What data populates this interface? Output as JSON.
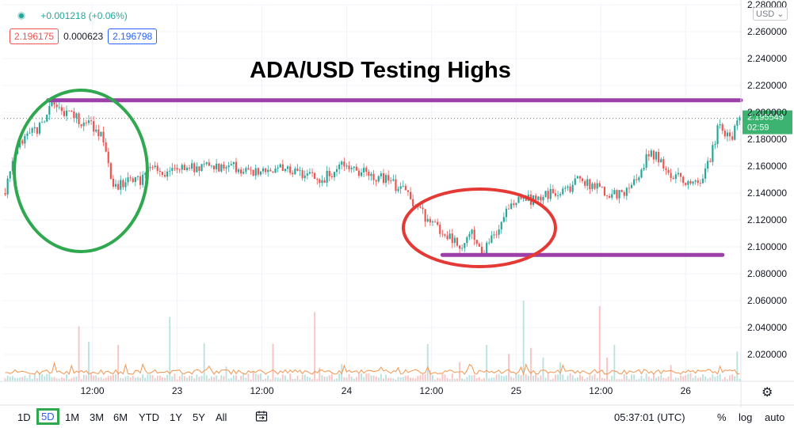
{
  "legend": {
    "change": "+0.001218 (+0.06%)",
    "bid": "2.196175",
    "spread": "0.000623",
    "ask": "2.196798"
  },
  "currency_label": "USD",
  "last_price": {
    "value": "2.195549",
    "countdown": "02:59"
  },
  "timeframes": [
    "1D",
    "5D",
    "1M",
    "3M",
    "6M",
    "YTD",
    "1Y",
    "5Y",
    "All"
  ],
  "selected_timeframe": "5D",
  "clock": "05:37:01 (UTC)",
  "scale_toggles": [
    "%",
    "log",
    "auto"
  ],
  "colors": {
    "up": "#26a69a",
    "down": "#ef5350",
    "resistance": "#9c3fa8",
    "green_ellipse": "#2fa84f",
    "red_ellipse": "#e53935",
    "price_tag": "#3cb371"
  },
  "chart_data": {
    "type": "candlestick",
    "title": "ADA/USD Testing Highs",
    "ylim": [
      2.0,
      2.28
    ],
    "y_ticks": [
      "2.020000",
      "2.040000",
      "2.060000",
      "2.080000",
      "2.100000",
      "2.120000",
      "2.140000",
      "2.160000",
      "2.180000",
      "2.200000",
      "2.220000",
      "2.240000",
      "2.260000",
      "2.280000"
    ],
    "x_ticks": [
      "12:00",
      "23",
      "12:00",
      "24",
      "12:00",
      "25",
      "12:00",
      "26"
    ],
    "price_path": [
      [
        0.0,
        2.14
      ],
      [
        0.02,
        2.175
      ],
      [
        0.05,
        2.19
      ],
      [
        0.065,
        2.205
      ],
      [
        0.08,
        2.2
      ],
      [
        0.1,
        2.195
      ],
      [
        0.12,
        2.19
      ],
      [
        0.135,
        2.18
      ],
      [
        0.145,
        2.15
      ],
      [
        0.155,
        2.145
      ],
      [
        0.17,
        2.15
      ],
      [
        0.185,
        2.148
      ],
      [
        0.2,
        2.16
      ],
      [
        0.22,
        2.155
      ],
      [
        0.25,
        2.158
      ],
      [
        0.28,
        2.16
      ],
      [
        0.31,
        2.16
      ],
      [
        0.34,
        2.155
      ],
      [
        0.37,
        2.158
      ],
      [
        0.4,
        2.155
      ],
      [
        0.43,
        2.15
      ],
      [
        0.46,
        2.16
      ],
      [
        0.49,
        2.155
      ],
      [
        0.52,
        2.15
      ],
      [
        0.545,
        2.14
      ],
      [
        0.575,
        2.12
      ],
      [
        0.6,
        2.11
      ],
      [
        0.62,
        2.1
      ],
      [
        0.635,
        2.11
      ],
      [
        0.65,
        2.095
      ],
      [
        0.665,
        2.108
      ],
      [
        0.68,
        2.125
      ],
      [
        0.7,
        2.135
      ],
      [
        0.72,
        2.135
      ],
      [
        0.74,
        2.14
      ],
      [
        0.76,
        2.14
      ],
      [
        0.78,
        2.15
      ],
      [
        0.8,
        2.145
      ],
      [
        0.82,
        2.14
      ],
      [
        0.84,
        2.138
      ],
      [
        0.86,
        2.15
      ],
      [
        0.875,
        2.17
      ],
      [
        0.89,
        2.165
      ],
      [
        0.9,
        2.155
      ],
      [
        0.92,
        2.15
      ],
      [
        0.94,
        2.145
      ],
      [
        0.955,
        2.16
      ],
      [
        0.97,
        2.19
      ],
      [
        0.985,
        2.18
      ],
      [
        1.0,
        2.196
      ]
    ],
    "resistance": [
      {
        "price": 2.209,
        "from": 0.06,
        "to": 1.0
      },
      {
        "price": 2.094,
        "from": 0.595,
        "to": 0.975
      }
    ],
    "annotations": [
      {
        "shape": "ellipse",
        "color": "green",
        "region": "early high"
      },
      {
        "shape": "ellipse",
        "color": "red",
        "region": "low test"
      }
    ]
  }
}
